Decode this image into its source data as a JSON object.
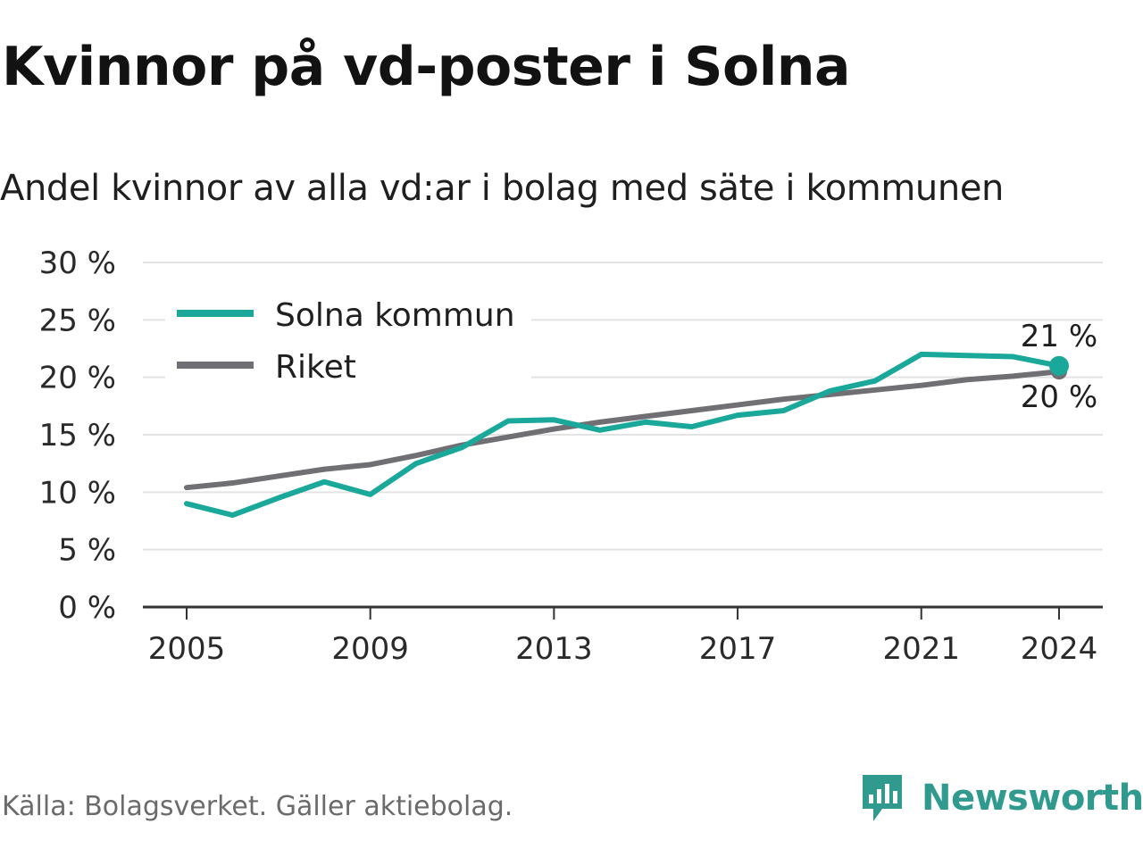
{
  "title": "Kvinnor på vd-poster i Solna",
  "subtitle": "Andel kvinnor av alla vd:ar i bolag med säte i kommunen",
  "source": "Källa: Bolagsverket. Gäller aktiebolag.",
  "brand": {
    "name": "Newsworthy",
    "color": "#2f9a8d",
    "icon": "newsworthy-logo-icon"
  },
  "chart_data": {
    "type": "line",
    "x": [
      2005,
      2006,
      2007,
      2008,
      2009,
      2010,
      2011,
      2012,
      2013,
      2014,
      2015,
      2016,
      2017,
      2018,
      2019,
      2020,
      2021,
      2022,
      2023,
      2024
    ],
    "x_ticks": [
      "2005",
      "2009",
      "2013",
      "2017",
      "2021",
      "2024"
    ],
    "y_ticks": [
      "0 %",
      "5 %",
      "10 %",
      "15 %",
      "20 %",
      "25 %",
      "30 %"
    ],
    "ylim": [
      0,
      30
    ],
    "xlim": [
      2005,
      2024
    ],
    "grid": true,
    "legend": "top-left",
    "series": [
      {
        "name": "Solna kommun",
        "color": "#1aa89a",
        "values": [
          9.0,
          8.0,
          9.5,
          10.9,
          9.8,
          12.5,
          13.9,
          16.2,
          16.3,
          15.4,
          16.1,
          15.7,
          16.7,
          17.1,
          18.8,
          19.7,
          22.0,
          21.9,
          21.8,
          21.0
        ]
      },
      {
        "name": "Riket",
        "color": "#707074",
        "values": [
          10.4,
          10.8,
          11.4,
          12.0,
          12.4,
          13.2,
          14.1,
          14.8,
          15.5,
          16.1,
          16.6,
          17.1,
          17.6,
          18.1,
          18.5,
          18.9,
          19.3,
          19.8,
          20.1,
          20.5
        ]
      }
    ],
    "end_labels": {
      "Solna kommun": "21 %",
      "Riket": "20 %"
    }
  }
}
